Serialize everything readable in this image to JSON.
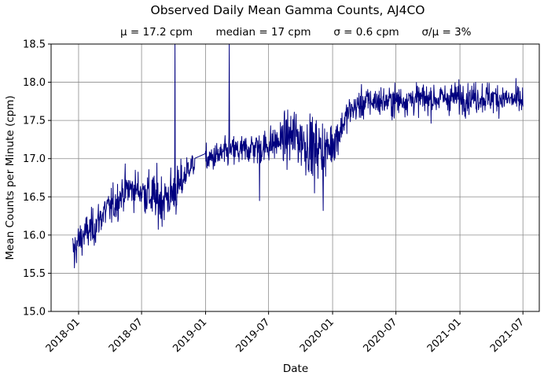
{
  "colors": {
    "series": "#00007f",
    "grid": "#8c8c8c",
    "axes": "#000000"
  },
  "chart_data": {
    "type": "line",
    "title": "Observed Daily Mean Gamma Counts, AJ4CO",
    "stats": {
      "mean": "μ = 17.2 cpm",
      "median": "median = 17 cpm",
      "sigma": "σ = 0.6 cpm",
      "ratio": "σ/μ = 3%"
    },
    "xlabel": "Date",
    "ylabel": "Mean Counts per Minute (cpm)",
    "xlim": [
      "2017-10-14",
      "2021-08-17"
    ],
    "ylim": [
      15.0,
      18.5
    ],
    "grid": true,
    "xticks": [
      "2018-01",
      "2018-07",
      "2019-01",
      "2019-07",
      "2020-01",
      "2020-07",
      "2021-01",
      "2021-07"
    ],
    "yticks": [
      "15.0",
      "15.5",
      "16.0",
      "16.5",
      "17.0",
      "17.5",
      "18.0",
      "18.5"
    ],
    "series": [
      {
        "x_start": "2017-12-15",
        "x_end": "2021-07-01",
        "trend": [
          [
            "2017-12-15",
            15.8
          ],
          [
            "2018-01-15",
            16.0
          ],
          [
            "2018-02-15",
            16.1
          ],
          [
            "2018-03-15",
            16.3
          ],
          [
            "2018-04-15",
            16.4
          ],
          [
            "2018-05-15",
            16.6
          ],
          [
            "2018-06-15",
            16.6
          ],
          [
            "2018-07-15",
            16.55
          ],
          [
            "2018-08-15",
            16.45
          ],
          [
            "2018-09-15",
            16.5
          ],
          [
            "2018-10-15",
            16.6
          ],
          [
            "2018-11-15",
            16.9
          ],
          [
            "2018-12-15",
            16.95
          ],
          [
            "2019-01-15",
            17.0
          ],
          [
            "2019-02-15",
            17.05
          ],
          [
            "2019-03-15",
            17.1
          ],
          [
            "2019-04-15",
            17.1
          ],
          [
            "2019-05-15",
            17.15
          ],
          [
            "2019-06-15",
            17.15
          ],
          [
            "2019-07-15",
            17.2
          ],
          [
            "2019-08-15",
            17.25
          ],
          [
            "2019-09-15",
            17.3
          ],
          [
            "2019-10-15",
            17.2
          ],
          [
            "2019-11-15",
            17.15
          ],
          [
            "2019-12-15",
            17.1
          ],
          [
            "2020-01-15",
            17.3
          ],
          [
            "2020-02-15",
            17.6
          ],
          [
            "2020-03-15",
            17.7
          ],
          [
            "2020-04-15",
            17.75
          ],
          [
            "2020-06-15",
            17.75
          ],
          [
            "2020-08-15",
            17.78
          ],
          [
            "2020-10-15",
            17.78
          ],
          [
            "2020-12-15",
            17.8
          ],
          [
            "2021-02-15",
            17.8
          ],
          [
            "2021-04-15",
            17.8
          ],
          [
            "2021-07-01",
            17.75
          ]
        ],
        "noise": [
          [
            "2017-12-15",
            0.12
          ],
          [
            "2018-07-01",
            0.12
          ],
          [
            "2018-08-01",
            0.18
          ],
          [
            "2018-10-15",
            0.16
          ],
          [
            "2018-11-15",
            0.08
          ],
          [
            "2019-08-01",
            0.12
          ],
          [
            "2019-09-15",
            0.2
          ],
          [
            "2019-12-15",
            0.18
          ],
          [
            "2020-02-01",
            0.1
          ],
          [
            "2021-07-01",
            0.1
          ]
        ],
        "spikes": [
          {
            "date": "2018-10-05",
            "value": 18.5
          },
          {
            "date": "2019-03-10",
            "value": 18.5
          },
          {
            "date": "2019-06-05",
            "value": 16.45
          },
          {
            "date": "2019-12-05",
            "value": 16.32
          },
          {
            "date": "2019-11-10",
            "value": 16.55
          },
          {
            "date": "2017-12-20",
            "value": 15.57
          }
        ],
        "gaps": [
          [
            "2018-12-01",
            "2018-12-31"
          ]
        ]
      }
    ]
  }
}
